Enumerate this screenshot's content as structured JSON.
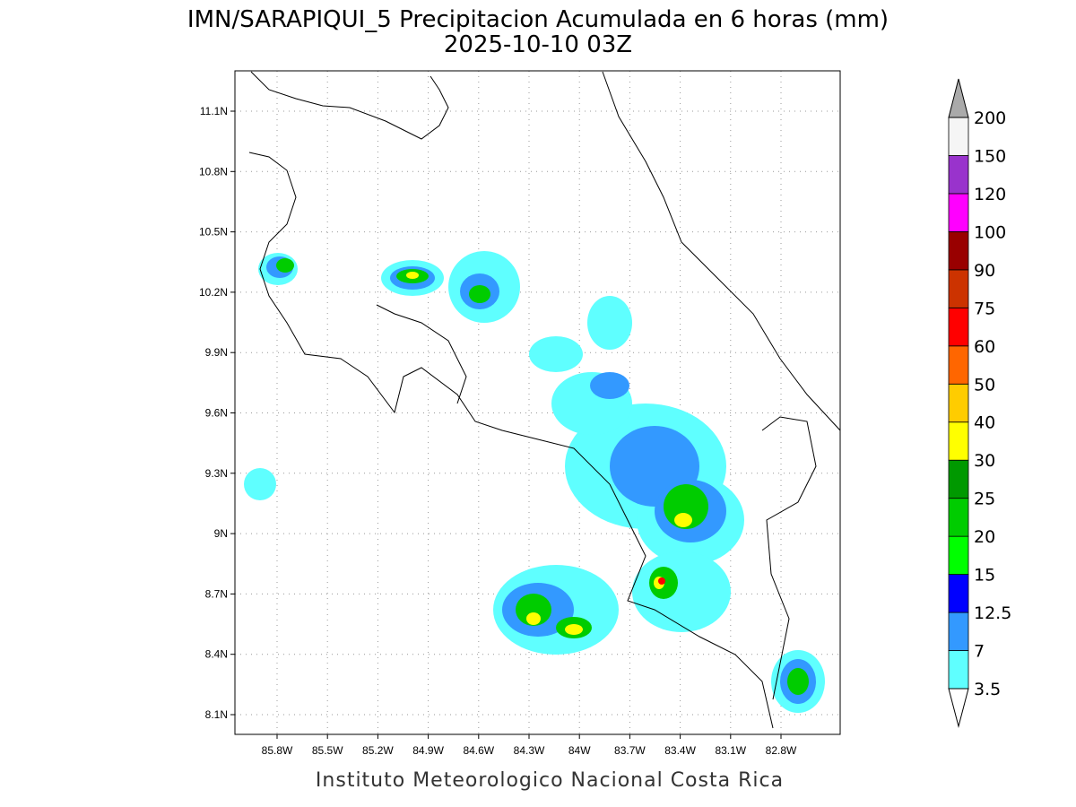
{
  "title": "IMN/SARAPIQUI_5 Precipitacion Acumulada en 6 horas (mm)",
  "subtitle": "2025-10-10 03Z",
  "map": {
    "lon_labels": [
      "85.8W",
      "85.5W",
      "85.2W",
      "84.9W",
      "84.6W",
      "84.3W",
      "84W",
      "83.7W",
      "83.4W",
      "83.1W",
      "82.8W"
    ],
    "lat_labels": [
      "11.1N",
      "10.8N",
      "10.5N",
      "10.2N",
      "9.9N",
      "9.6N",
      "9.3N",
      "9N",
      "8.7N",
      "8.4N",
      "8.1N"
    ]
  },
  "colorbar": {
    "levels": [
      3.5,
      7,
      12.5,
      15,
      20,
      25,
      30,
      40,
      50,
      60,
      75,
      90,
      100,
      120,
      150,
      200
    ],
    "colors": [
      "#5fffff",
      "#3399ff",
      "#0000ff",
      "#00ff00",
      "#00cc00",
      "#009900",
      "#ffff00",
      "#ffcc00",
      "#ff6600",
      "#ff0000",
      "#cc3300",
      "#990000",
      "#ff00ff",
      "#9933cc",
      "#f5f5f5"
    ],
    "over_color": "#aaaaaa",
    "under_color": "#ffffff"
  },
  "credit": "Instituto Meteorologico Nacional Costa Rica"
}
